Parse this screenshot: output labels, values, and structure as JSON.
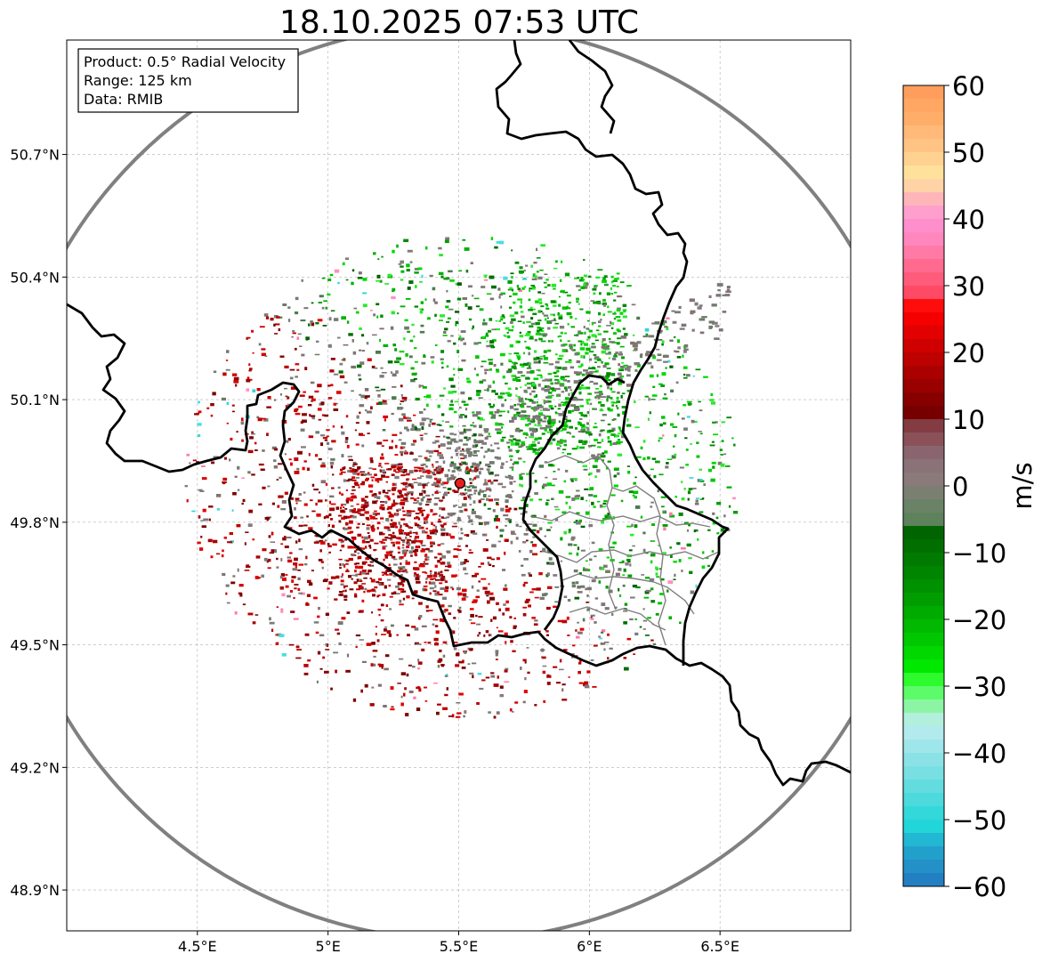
{
  "title": "18.10.2025 07:53 UTC",
  "info_box": {
    "product": "Product: 0.5° Radial Velocity",
    "range": "Range: 125 km",
    "data": "Data: RMIB"
  },
  "map": {
    "lon_range": [
      4.0,
      7.0
    ],
    "lat_range": [
      48.8,
      50.98
    ],
    "radar_site": {
      "lon": 5.505,
      "lat": 49.914,
      "color": "#e81e1e"
    },
    "x_ticks": [
      {
        "value": 4.5,
        "label": "4.5°E"
      },
      {
        "value": 5.0,
        "label": "5°E"
      },
      {
        "value": 5.5,
        "label": "5.5°E"
      },
      {
        "value": 6.0,
        "label": "6°E"
      },
      {
        "value": 6.5,
        "label": "6.5°E"
      }
    ],
    "y_ticks": [
      {
        "value": 50.7,
        "label": "50.7°N"
      },
      {
        "value": 50.4,
        "label": "50.4°N"
      },
      {
        "value": 50.1,
        "label": "50.1°N"
      },
      {
        "value": 49.8,
        "label": "49.8°N"
      },
      {
        "value": 49.5,
        "label": "49.5°N"
      },
      {
        "value": 49.2,
        "label": "49.2°N"
      },
      {
        "value": 48.9,
        "label": "48.9°N"
      }
    ],
    "range_ring_color": "#808080",
    "border_color": "#000000",
    "admin_color": "#7f7f7f"
  },
  "colorbar": {
    "label": "m/s",
    "min": -60,
    "max": 60,
    "ticks": [
      {
        "value": 60,
        "label": "60"
      },
      {
        "value": 50,
        "label": "50"
      },
      {
        "value": 40,
        "label": "40"
      },
      {
        "value": 30,
        "label": "30"
      },
      {
        "value": 20,
        "label": "20"
      },
      {
        "value": 10,
        "label": "10"
      },
      {
        "value": 0,
        "label": "0"
      },
      {
        "value": -10,
        "label": "−10"
      },
      {
        "value": -20,
        "label": "−20"
      },
      {
        "value": -30,
        "label": "−30"
      },
      {
        "value": -40,
        "label": "−40"
      },
      {
        "value": -50,
        "label": "−50"
      },
      {
        "value": -60,
        "label": "−60"
      }
    ],
    "bands": [
      {
        "from": 58,
        "to": 60,
        "color": "#ff9e5c"
      },
      {
        "from": 56,
        "to": 58,
        "color": "#ffa763"
      },
      {
        "from": 54,
        "to": 56,
        "color": "#ffae6a"
      },
      {
        "from": 52,
        "to": 54,
        "color": "#ffb978"
      },
      {
        "from": 50,
        "to": 52,
        "color": "#ffc484"
      },
      {
        "from": 48,
        "to": 50,
        "color": "#ffd291"
      },
      {
        "from": 46,
        "to": 48,
        "color": "#ffe19c"
      },
      {
        "from": 44,
        "to": 46,
        "color": "#ffd3a6"
      },
      {
        "from": 42,
        "to": 44,
        "color": "#ffb6b8"
      },
      {
        "from": 40,
        "to": 42,
        "color": "#ff9fcd"
      },
      {
        "from": 38,
        "to": 40,
        "color": "#ff8fcc"
      },
      {
        "from": 36,
        "to": 38,
        "color": "#ff87bd"
      },
      {
        "from": 34,
        "to": 36,
        "color": "#ff7aa6"
      },
      {
        "from": 32,
        "to": 34,
        "color": "#ff6a8e"
      },
      {
        "from": 30,
        "to": 32,
        "color": "#ff5c7c"
      },
      {
        "from": 28,
        "to": 30,
        "color": "#ff4a66"
      },
      {
        "from": 26,
        "to": 28,
        "color": "#ff0d0d"
      },
      {
        "from": 24,
        "to": 26,
        "color": "#f40000"
      },
      {
        "from": 22,
        "to": 24,
        "color": "#e20000"
      },
      {
        "from": 20,
        "to": 22,
        "color": "#cf0000"
      },
      {
        "from": 18,
        "to": 20,
        "color": "#bd0000"
      },
      {
        "from": 16,
        "to": 18,
        "color": "#ab0000"
      },
      {
        "from": 14,
        "to": 16,
        "color": "#990000"
      },
      {
        "from": 12,
        "to": 14,
        "color": "#870000"
      },
      {
        "from": 10,
        "to": 12,
        "color": "#760000"
      },
      {
        "from": 8,
        "to": 10,
        "color": "#823c42"
      },
      {
        "from": 6,
        "to": 8,
        "color": "#8a5158"
      },
      {
        "from": 4,
        "to": 6,
        "color": "#8a6570"
      },
      {
        "from": 2,
        "to": 4,
        "color": "#8a7279"
      },
      {
        "from": 0,
        "to": 2,
        "color": "#8a7a7a"
      },
      {
        "from": -2,
        "to": 0,
        "color": "#7b7f72"
      },
      {
        "from": -4,
        "to": -2,
        "color": "#6a8266"
      },
      {
        "from": -6,
        "to": -4,
        "color": "#5e825c"
      },
      {
        "from": -8,
        "to": -6,
        "color": "#006500"
      },
      {
        "from": -10,
        "to": -8,
        "color": "#006f00"
      },
      {
        "from": -12,
        "to": -10,
        "color": "#007a00"
      },
      {
        "from": -14,
        "to": -12,
        "color": "#008500"
      },
      {
        "from": -16,
        "to": -14,
        "color": "#009100"
      },
      {
        "from": -18,
        "to": -16,
        "color": "#009d00"
      },
      {
        "from": -20,
        "to": -18,
        "color": "#00ab00"
      },
      {
        "from": -22,
        "to": -20,
        "color": "#00b900"
      },
      {
        "from": -24,
        "to": -22,
        "color": "#00c800"
      },
      {
        "from": -26,
        "to": -24,
        "color": "#00d800"
      },
      {
        "from": -28,
        "to": -26,
        "color": "#00e800"
      },
      {
        "from": -30,
        "to": -28,
        "color": "#2dfb2d"
      },
      {
        "from": -32,
        "to": -30,
        "color": "#5cfb6a"
      },
      {
        "from": -34,
        "to": -32,
        "color": "#8cf5a4"
      },
      {
        "from": -36,
        "to": -34,
        "color": "#b3efdd"
      },
      {
        "from": -38,
        "to": -36,
        "color": "#b2eaee"
      },
      {
        "from": -40,
        "to": -38,
        "color": "#9fe6ea"
      },
      {
        "from": -42,
        "to": -40,
        "color": "#8be2e6"
      },
      {
        "from": -44,
        "to": -42,
        "color": "#78dfe3"
      },
      {
        "from": -46,
        "to": -44,
        "color": "#62dcdf"
      },
      {
        "from": -48,
        "to": -46,
        "color": "#4cdadc"
      },
      {
        "from": -50,
        "to": -48,
        "color": "#33d8da"
      },
      {
        "from": -52,
        "to": -50,
        "color": "#22d5d9"
      },
      {
        "from": -54,
        "to": -52,
        "color": "#22b7d2"
      },
      {
        "from": -56,
        "to": -54,
        "color": "#22a0cc"
      },
      {
        "from": -58,
        "to": -56,
        "color": "#2390c7"
      },
      {
        "from": -60,
        "to": -58,
        "color": "#2280c2"
      }
    ]
  },
  "echo_palette": {
    "red": [
      "#7a0000",
      "#8e0000",
      "#a80000",
      "#bf0000",
      "#d10000",
      "#e00000"
    ],
    "grey": [
      "#7f7575",
      "#857070",
      "#7a7a78",
      "#6e7b6c",
      "#847b7e"
    ],
    "green": [
      "#008a00",
      "#009e00",
      "#00b200",
      "#00c400",
      "#00d800",
      "#2de82d"
    ],
    "dark_green": [
      "#005f00",
      "#006e00",
      "#4e7a4e"
    ],
    "cyan": [
      "#4bdde0",
      "#2fd6da"
    ],
    "pink": [
      "#ff8fc0",
      "#ff7aa6"
    ]
  }
}
